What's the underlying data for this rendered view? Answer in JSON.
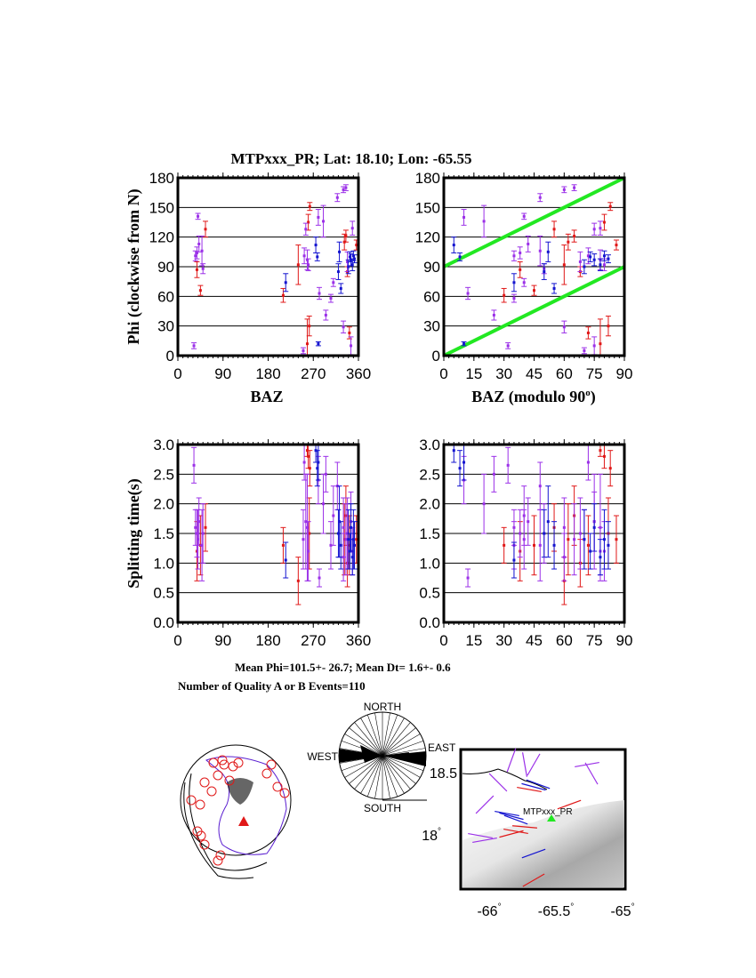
{
  "title": "MTPxxx_PR; Lat:  18.10;  Lon:  -65.55",
  "summary": {
    "mean_line": "Mean Phi=101.5+- 26.7; Mean Dt=  1.6+-  0.6",
    "count_line": "Number of Quality A or B Events=110"
  },
  "colors": {
    "red": "#e01818",
    "purple": "#9b30e8",
    "blue": "#1414d0",
    "green": "#22e822"
  },
  "chart_data": [
    {
      "type": "scatter",
      "panel": "top-left",
      "xlabel": "BAZ",
      "ylabel": "Phi (clockwise from N)",
      "xlim": [
        0,
        360
      ],
      "ylim": [
        0,
        180
      ],
      "xticks": [
        "0",
        "90",
        "180",
        "270",
        "360"
      ],
      "yticks": [
        "0",
        "30",
        "60",
        "90",
        "120",
        "150",
        "180"
      ],
      "grid": "horizontal"
    },
    {
      "type": "scatter",
      "panel": "top-right",
      "xlabel": "BAZ (modulo 90",
      "xlabel_sup": "o",
      "xlabel_end": ")",
      "xlim": [
        0,
        90
      ],
      "ylim": [
        0,
        180
      ],
      "xticks": [
        "0",
        "15",
        "30",
        "45",
        "60",
        "75",
        "90"
      ],
      "yticks": [
        "0",
        "30",
        "60",
        "90",
        "120",
        "150",
        "180"
      ],
      "reference_lines": [
        [
          [
            0,
            0
          ],
          [
            90,
            90
          ]
        ],
        [
          [
            0,
            90
          ],
          [
            90,
            180
          ]
        ]
      ],
      "grid": "horizontal"
    },
    {
      "type": "scatter",
      "panel": "bottom-left",
      "ylabel": "Splitting time(s)",
      "xlim": [
        0,
        360
      ],
      "ylim": [
        0,
        3
      ],
      "xticks": [
        "0",
        "90",
        "180",
        "270",
        "360"
      ],
      "yticks": [
        "0.0",
        "0.5",
        "1.0",
        "1.5",
        "2.0",
        "2.5",
        "3.0"
      ],
      "grid": "horizontal"
    },
    {
      "type": "scatter",
      "panel": "bottom-right",
      "xlim": [
        0,
        90
      ],
      "ylim": [
        0,
        3
      ],
      "xticks": [
        "0",
        "15",
        "30",
        "45",
        "60",
        "75",
        "90"
      ],
      "yticks": [
        "0.0",
        "0.5",
        "1.0",
        "1.5",
        "2.0",
        "2.5",
        "3.0"
      ],
      "grid": "horizontal"
    }
  ],
  "measurements": {
    "fields": [
      "baz",
      "phi",
      "phi_err",
      "dt",
      "dt_err"
    ],
    "purple": [
      [
        32,
        10,
        3,
        2.65,
        0.3
      ],
      [
        35,
        101,
        5,
        1.6,
        0.3
      ],
      [
        38,
        104,
        6,
        1.5,
        0.4
      ],
      [
        40,
        141,
        3,
        1.4,
        0.5
      ],
      [
        42,
        113,
        8,
        1.7,
        0.4
      ],
      [
        48,
        106,
        15,
        1.3,
        0.6
      ],
      [
        50,
        88,
        5,
        1.5,
        0.5
      ],
      [
        250,
        5,
        3,
        1.4,
        0.5
      ],
      [
        252,
        101,
        8,
        2.7,
        0.3
      ],
      [
        255,
        128,
        6,
        1.7,
        0.8
      ],
      [
        258,
        97,
        10,
        1.6,
        0.9
      ],
      [
        260,
        92,
        6,
        1.2,
        0.5
      ],
      [
        280,
        140,
        8,
        2.4,
        0.4
      ],
      [
        282,
        63,
        6,
        0.75,
        0.15
      ],
      [
        290,
        136,
        16,
        2.0,
        0.5
      ],
      [
        295,
        41,
        5,
        2.5,
        0.3
      ],
      [
        305,
        58,
        4,
        1.3,
        0.4
      ],
      [
        310,
        74,
        4,
        1.8,
        0.5
      ],
      [
        318,
        160,
        4,
        2.3,
        0.4
      ],
      [
        330,
        168,
        3,
        1.6,
        0.5
      ],
      [
        335,
        170,
        3,
        1.4,
        0.6
      ],
      [
        330,
        29,
        6,
        1.1,
        0.4
      ],
      [
        338,
        95,
        10,
        1.5,
        0.6
      ],
      [
        345,
        10,
        9,
        1.7,
        0.5
      ],
      [
        348,
        129,
        7,
        1.2,
        0.4
      ]
    ],
    "red": [
      [
        45,
        66,
        5,
        1.3,
        0.5
      ],
      [
        55,
        128,
        8,
        1.6,
        0.4
      ],
      [
        38,
        87,
        8,
        1.2,
        0.5
      ],
      [
        210,
        61,
        7,
        1.3,
        0.3
      ],
      [
        240,
        92,
        20,
        0.7,
        0.4
      ],
      [
        258,
        12,
        25,
        2.9,
        0.1
      ],
      [
        260,
        135,
        8,
        2.8,
        0.2
      ],
      [
        263,
        151,
        4,
        2.6,
        0.3
      ],
      [
        262,
        30,
        10,
        1.5,
        0.6
      ],
      [
        332,
        115,
        8,
        1.4,
        0.6
      ],
      [
        335,
        121,
        6,
        1.8,
        0.5
      ],
      [
        338,
        85,
        5,
        1.0,
        0.4
      ],
      [
        342,
        23,
        6,
        1.3,
        0.5
      ],
      [
        356,
        112,
        5,
        1.4,
        0.4
      ]
    ],
    "blue": [
      [
        215,
        74,
        9,
        1.05,
        0.3
      ],
      [
        275,
        112,
        8,
        2.9,
        0.2
      ],
      [
        278,
        100,
        4,
        2.6,
        0.3
      ],
      [
        280,
        12,
        2,
        2.7,
        0.3
      ],
      [
        320,
        85,
        8,
        1.5,
        0.4
      ],
      [
        322,
        105,
        10,
        1.7,
        0.6
      ],
      [
        325,
        68,
        5,
        1.3,
        0.4
      ],
      [
        340,
        90,
        7,
        1.4,
        0.5
      ],
      [
        343,
        100,
        5,
        1.2,
        0.3
      ],
      [
        345,
        97,
        6,
        1.6,
        0.4
      ],
      [
        348,
        92,
        6,
        1.1,
        0.3
      ],
      [
        350,
        101,
        5,
        1.4,
        0.5
      ],
      [
        352,
        98,
        4,
        1.3,
        0.4
      ]
    ]
  },
  "rose": {
    "north": "NORTH",
    "south": "SOUTH",
    "west": "WEST",
    "east": "EAST"
  },
  "map": {
    "station_label": "MTPxxx_PR",
    "lon_ticks": [
      "-66",
      "-65.5",
      "-65"
    ],
    "lat_ticks": [
      "18",
      "18.5"
    ],
    "degree": "°"
  }
}
